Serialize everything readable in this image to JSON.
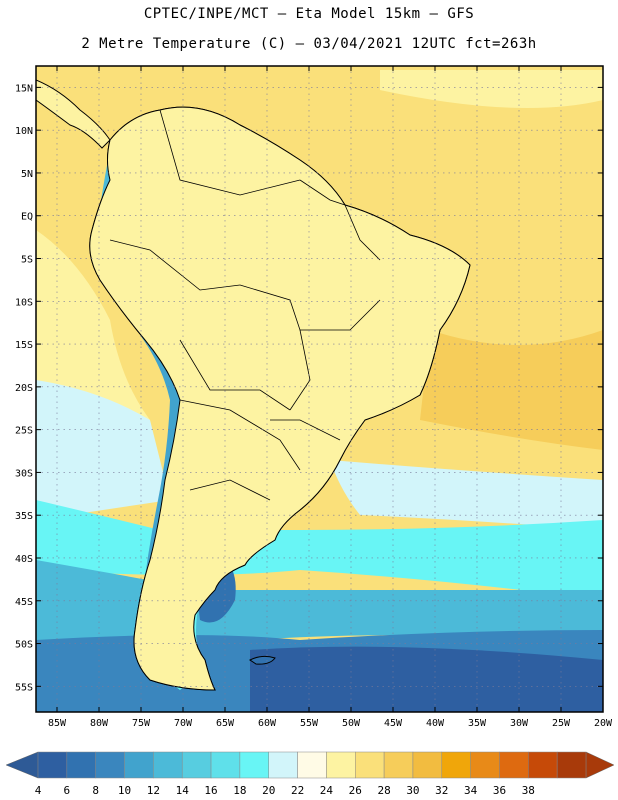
{
  "header": {
    "line1": "CPTEC/INPE/MCT –  Eta Model 15km – GFS",
    "line2": "2 Metre Temperature (C) – 03/04/2021 12UTC fct=263h"
  },
  "axes": {
    "lat_labels": [
      "15N",
      "10N",
      "5N",
      "EQ",
      "5S",
      "10S",
      "15S",
      "20S",
      "25S",
      "30S",
      "35S",
      "40S",
      "45S",
      "50S",
      "55S"
    ],
    "lon_labels": [
      "85W",
      "80W",
      "75W",
      "70W",
      "65W",
      "60W",
      "55W",
      "50W",
      "45W",
      "40W",
      "35W",
      "30W",
      "25W",
      "20W"
    ]
  },
  "colorbar": {
    "labels": [
      "4",
      "6",
      "8",
      "10",
      "12",
      "14",
      "16",
      "18",
      "20",
      "22",
      "24",
      "26",
      "28",
      "30",
      "32",
      "34",
      "36",
      "38"
    ],
    "colors": [
      "#2e5fa1",
      "#3172b0",
      "#3a86be",
      "#41a3cd",
      "#4cbad8",
      "#57cde0",
      "#5fe0ea",
      "#68f5f5",
      "#d2f5fa",
      "#fffbe6",
      "#fdf3a2",
      "#fae07a",
      "#f6cd5a",
      "#f2bc40",
      "#f0a60a",
      "#e88a18",
      "#de6a10",
      "#c64a08",
      "#a83a0a"
    ],
    "left_arrow_color": "#2e5a96",
    "right_arrow_color": "#a83a0a"
  },
  "map": {
    "ocean_colors": {
      "tropical": "#fae07a",
      "hot": "#f6cd5a",
      "warm": "#fdf3a2",
      "mild": "#d2f5fa",
      "cool": "#68f5f5",
      "cold": "#41a3cd",
      "deep_cold": "#2e5fa1"
    }
  }
}
